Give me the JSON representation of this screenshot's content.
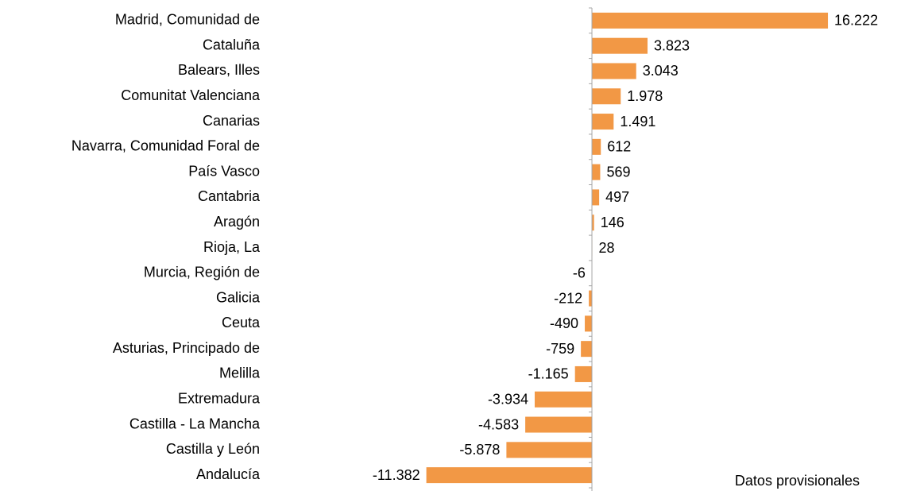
{
  "chart_data": {
    "type": "bar",
    "orientation": "horizontal",
    "categories": [
      "Madrid, Comunidad de",
      "Cataluña",
      "Balears, Illes",
      "Comunitat Valenciana",
      "Canarias",
      "Navarra, Comunidad Foral de",
      "País Vasco",
      "Cantabria",
      "Aragón",
      "Rioja, La",
      "Murcia, Región de",
      "Galicia",
      "Ceuta",
      "Asturias, Principado de",
      "Melilla",
      "Extremadura",
      "Castilla - La Mancha",
      "Castilla y León",
      "Andalucía"
    ],
    "values": [
      16222,
      3823,
      3043,
      1978,
      1491,
      612,
      569,
      497,
      146,
      28,
      -6,
      -212,
      -490,
      -759,
      -1165,
      -3934,
      -4583,
      -5878,
      -11382
    ],
    "value_labels": [
      "16.222",
      "3.823",
      "3.043",
      "1.978",
      "1.491",
      "612",
      "569",
      "497",
      "146",
      "28",
      "-6",
      "-212",
      "-490",
      "-759",
      "-1.165",
      "-3.934",
      "-4.583",
      "-5.878",
      "-11.382"
    ],
    "color": "#f29845",
    "xlim": [
      -12000,
      18000
    ],
    "annotation": "Datos provisionales"
  }
}
